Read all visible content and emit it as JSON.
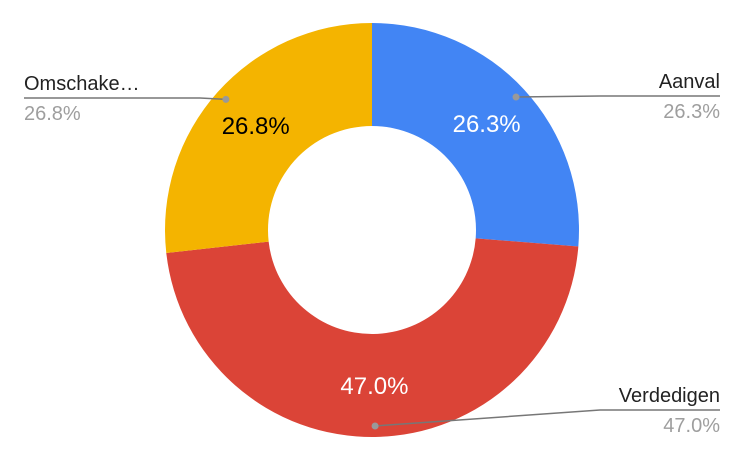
{
  "chart_data": {
    "type": "donut",
    "categories": [
      "Aanval",
      "Verdedigen",
      "Omschake…"
    ],
    "values": [
      26.3,
      47.0,
      26.8
    ],
    "value_labels": [
      "26.3%",
      "47.0%",
      "26.8%"
    ],
    "colors": [
      "#4285f4",
      "#db4437",
      "#f4b400"
    ]
  }
}
